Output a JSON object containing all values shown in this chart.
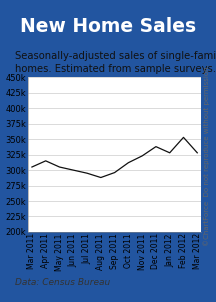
{
  "title": "New Home Sales",
  "subtitle": "Seasonally-adjusted sales of single-family\nhomes. Estimated from sample surveys.",
  "footer": "Data: Census Bureau",
  "watermark": "©ChartForce  Do not reproduce without permission.",
  "x_labels": [
    "Mar 2011",
    "Apr 2011",
    "May 2011",
    "Jun 2011",
    "Jul 2011",
    "Aug 2011",
    "Sep 2011",
    "Oct 2011",
    "Nov 2011",
    "Dec 2011",
    "Jan 2012",
    "Feb 2012",
    "Mar 2012"
  ],
  "values": [
    305000,
    315000,
    305000,
    300000,
    295000,
    288000,
    296000,
    312000,
    323000,
    338000,
    328000,
    353000,
    328000
  ],
  "ylim": [
    200000,
    450000
  ],
  "yticks": [
    200000,
    225000,
    250000,
    275000,
    300000,
    325000,
    350000,
    375000,
    400000,
    425000,
    450000
  ],
  "title_bg": "#1858a8",
  "title_color": "#ffffff",
  "content_bg": "#ffffff",
  "outer_bg": "#2255a0",
  "line_color": "#111111",
  "grid_color": "#cccccc",
  "title_fontsize": 13.5,
  "subtitle_fontsize": 7.2,
  "footer_fontsize": 6.5,
  "watermark_fontsize": 5.0,
  "ytick_fontsize": 6.0,
  "xtick_fontsize": 5.5
}
